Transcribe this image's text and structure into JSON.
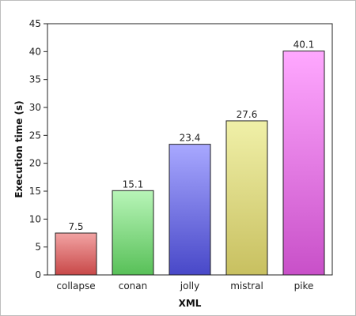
{
  "chart_data": {
    "type": "bar",
    "title": "",
    "xlabel": "XML",
    "ylabel": "Execution time (s)",
    "ylim": [
      0,
      45
    ],
    "yticks": [
      0,
      5,
      10,
      15,
      20,
      25,
      30,
      35,
      40,
      45
    ],
    "grid": false,
    "categories": [
      "collapse",
      "conan",
      "jolly",
      "mistral",
      "pike"
    ],
    "values": [
      7.5,
      15.1,
      23.4,
      27.6,
      40.1
    ],
    "value_labels": [
      "7.5",
      "15.1",
      "23.4",
      "27.6",
      "40.1"
    ],
    "colors": [
      {
        "top": "#f2a3a3",
        "bottom": "#c84848"
      },
      {
        "top": "#b8f5b8",
        "bottom": "#58c058"
      },
      {
        "top": "#a8a8ff",
        "bottom": "#4848c8"
      },
      {
        "top": "#f0f0a8",
        "bottom": "#c8c060"
      },
      {
        "top": "#ffa8ff",
        "bottom": "#c850c8"
      }
    ]
  }
}
